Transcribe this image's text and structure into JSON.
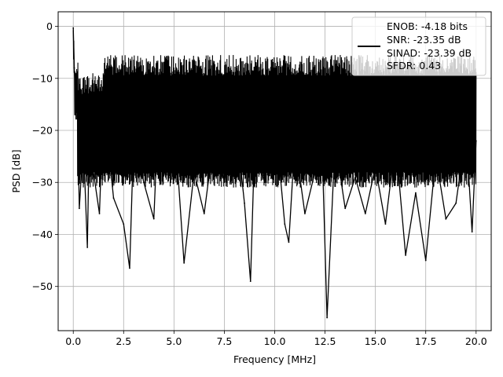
{
  "chart_data": {
    "type": "line",
    "title": "",
    "xlabel": "Frequency [MHz]",
    "ylabel": "PSD [dB]",
    "xlim": [
      -0.75,
      20.75
    ],
    "ylim": [
      -58.5,
      2.8
    ],
    "xticks": [
      0.0,
      2.5,
      5.0,
      7.5,
      10.0,
      12.5,
      15.0,
      17.5,
      20.0
    ],
    "xtick_labels": [
      "0.0",
      "2.5",
      "5.0",
      "7.5",
      "10.0",
      "12.5",
      "15.0",
      "17.5",
      "20.0"
    ],
    "yticks": [
      0,
      -10,
      -20,
      -30,
      -40,
      -50
    ],
    "ytick_labels": [
      "0",
      "−10",
      "−20",
      "−30",
      "−40",
      "−50"
    ],
    "grid": true,
    "legend_position": "top-right",
    "series": [
      {
        "color": "#000000",
        "x": [
          0.0,
          0.05,
          0.1,
          0.2,
          0.3,
          0.5,
          0.7,
          0.8,
          1.0,
          1.3,
          1.5,
          2.0,
          2.5,
          2.8,
          3.0,
          3.5,
          4.0,
          4.3,
          4.6,
          5.0,
          5.5,
          6.0,
          6.5,
          7.0,
          7.5,
          8.0,
          8.5,
          8.8,
          9.0,
          9.5,
          10.0,
          10.5,
          10.7,
          11.0,
          11.5,
          12.0,
          12.3,
          12.6,
          13.0,
          13.5,
          14.0,
          14.5,
          15.0,
          15.5,
          16.0,
          16.5,
          17.0,
          17.5,
          18.0,
          18.5,
          19.0,
          19.5,
          19.8,
          20.0
        ],
        "y": [
          -0.3,
          -8,
          -12,
          -14,
          -35,
          -22,
          -42.5,
          -20,
          -28,
          -36,
          -14,
          -33,
          -38,
          -46.5,
          -21,
          -30,
          -37,
          -10,
          -29,
          -17,
          -45.5,
          -28,
          -36,
          -21,
          -30,
          -16,
          -34,
          -49,
          -23,
          -30,
          -17,
          -38,
          -41.5,
          -22,
          -36,
          -28,
          -16,
          -56,
          -22,
          -35,
          -29,
          -36,
          -27,
          -38,
          -22,
          -44,
          -32,
          -45,
          -25,
          -37,
          -34,
          -20,
          -39.5,
          -22
        ]
      }
    ],
    "legend": [
      "ENOB: -4.18 bits",
      "SNR: -23.35 dB",
      "SINAD: -23.39 dB",
      "SFDR: 0.43"
    ]
  }
}
